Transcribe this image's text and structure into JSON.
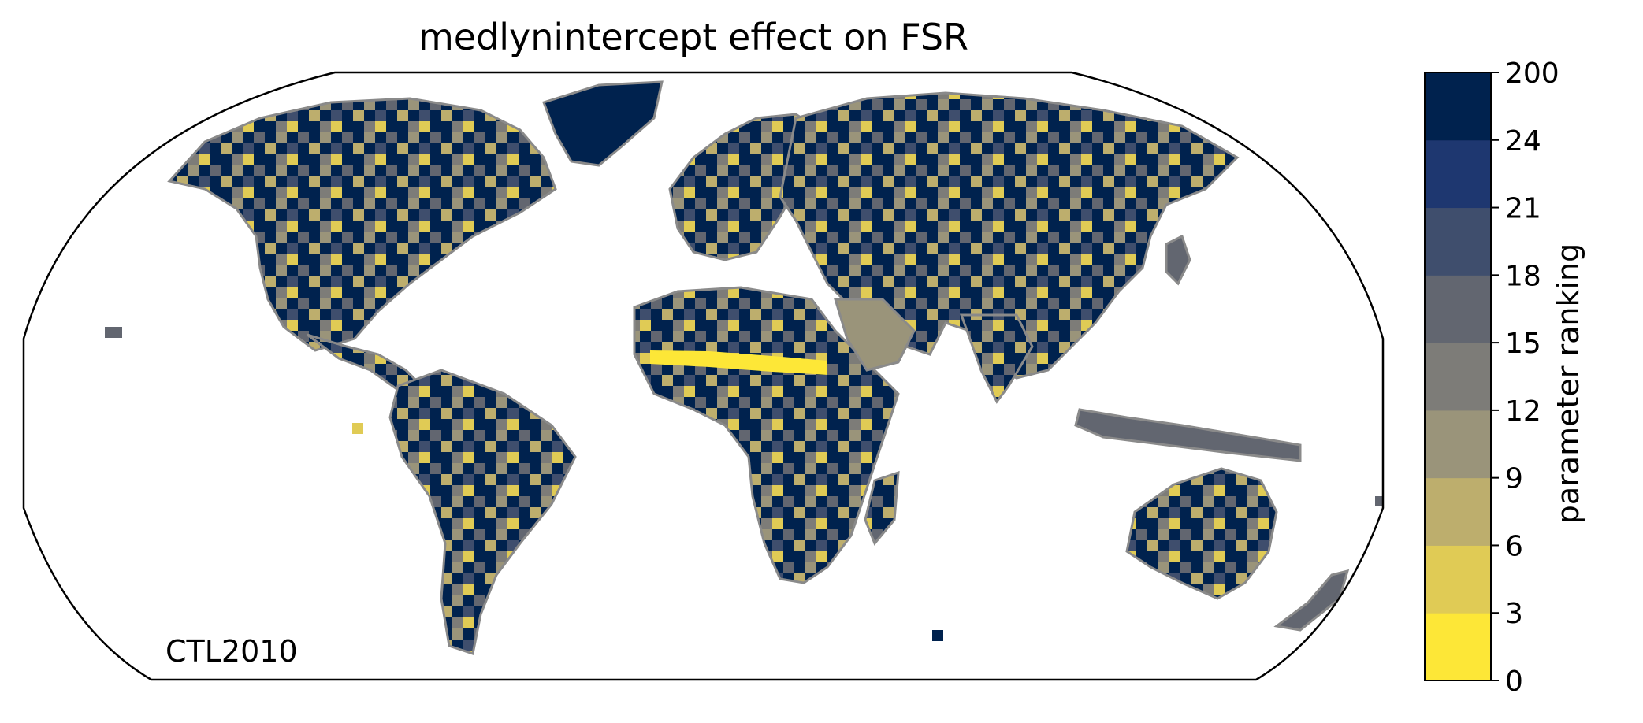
{
  "title": "medlynintercept effect on FSR",
  "map_label": "CTL2010",
  "colorbar": {
    "label": "parameter ranking",
    "ticks": [
      "0",
      "3",
      "6",
      "9",
      "12",
      "15",
      "18",
      "21",
      "24",
      "200"
    ],
    "colors": [
      "#fde737",
      "#e0cb55",
      "#bdae6d",
      "#9a947a",
      "#7d7c78",
      "#626670",
      "#3f4e6d",
      "#1e3770",
      "#00224e"
    ]
  },
  "coastline_color": "#8a8a8a"
}
